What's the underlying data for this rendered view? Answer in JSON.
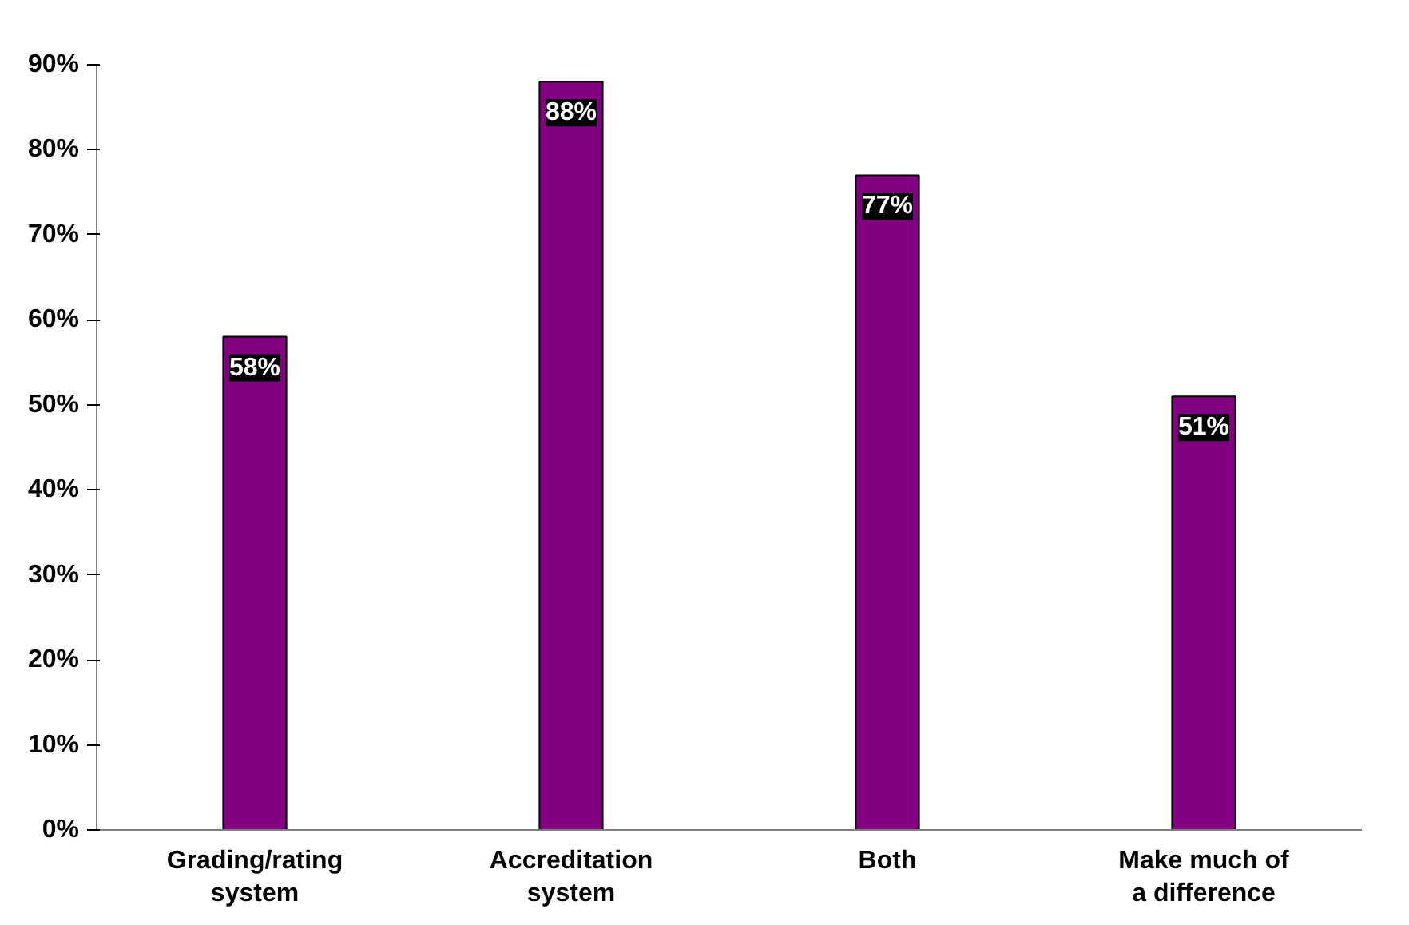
{
  "chart_data": {
    "type": "bar",
    "categories": [
      "Grading/rating\nsystem",
      "Accreditation\nsystem",
      "Both",
      "Make much of\na difference"
    ],
    "values": [
      58,
      88,
      77,
      51
    ],
    "color": "#800080",
    "value_labels": [
      "58%",
      "88%",
      "77%",
      "51%"
    ],
    "ylim": [
      0,
      90
    ],
    "yticks": [
      {
        "value": 0,
        "label": "0%"
      },
      {
        "value": 10,
        "label": "10%"
      },
      {
        "value": 20,
        "label": "20%"
      },
      {
        "value": 30,
        "label": "30%"
      },
      {
        "value": 40,
        "label": "40%"
      },
      {
        "value": 50,
        "label": "50%"
      },
      {
        "value": 60,
        "label": "60%"
      },
      {
        "value": 70,
        "label": "70%"
      },
      {
        "value": 80,
        "label": "80%"
      },
      {
        "value": 90,
        "label": "90%"
      }
    ],
    "grid": false
  }
}
